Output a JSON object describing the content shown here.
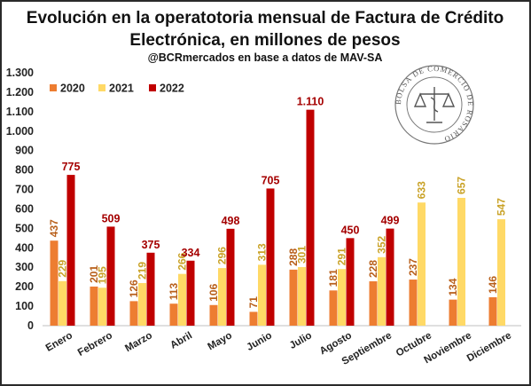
{
  "chart_data": {
    "type": "bar",
    "title_line1": "Evolución en la operatotoria mensual de Factura de Crédito",
    "title_line2": "Electrónica, en millones de pesos",
    "subtitle": "@BCRmercados en base a datos de MAV-SA",
    "categories": [
      "Enero",
      "Febrero",
      "Marzo",
      "Abril",
      "Mayo",
      "Junio",
      "Julio",
      "Agosto",
      "Septiembre",
      "Octubre",
      "Noviembre",
      "Diciembre"
    ],
    "series": [
      {
        "name": "2020",
        "color": "#ED7D31",
        "label_color": "#B85F1A",
        "values": [
          437,
          201,
          126,
          113,
          106,
          71,
          288,
          181,
          228,
          237,
          134,
          146
        ],
        "labels": [
          "437",
          "201",
          "126",
          "113",
          "106",
          "71",
          "288",
          "181",
          "228",
          "237",
          "134",
          "146"
        ]
      },
      {
        "name": "2021",
        "color": "#FFD966",
        "label_color": "#C9A227",
        "values": [
          229,
          195,
          219,
          266,
          296,
          313,
          301,
          291,
          352,
          633,
          657,
          547
        ],
        "labels": [
          "229",
          "195",
          "219",
          "266",
          "296",
          "313",
          "301",
          "291",
          "352",
          "633",
          "657",
          "547"
        ]
      },
      {
        "name": "2022",
        "color": "#C00000",
        "label_color": "#A50000",
        "values": [
          775,
          509,
          375,
          334,
          498,
          705,
          1110,
          450,
          499,
          null,
          null,
          null
        ],
        "labels": [
          "775",
          "509",
          "375",
          "334",
          "498",
          "705",
          "1.110",
          "450",
          "499",
          "",
          "",
          ""
        ]
      }
    ],
    "ylim": [
      0,
      1300
    ],
    "yticks": [
      0,
      100,
      200,
      300,
      400,
      500,
      600,
      700,
      800,
      900,
      1000,
      1100,
      1200,
      1300
    ],
    "ytick_labels": [
      "0",
      "100",
      "200",
      "300",
      "400",
      "500",
      "600",
      "700",
      "800",
      "900",
      "1.000",
      "1.100",
      "1.200",
      "1.300"
    ],
    "legend_position": "top-left",
    "grid": false
  },
  "seal": {
    "text": "BOLSA DE COMERCIO DE ROSARIO"
  }
}
